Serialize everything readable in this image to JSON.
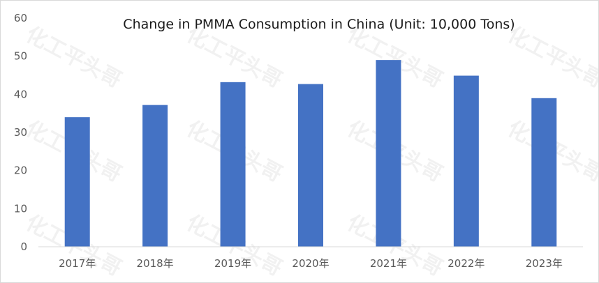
{
  "chart_data": {
    "type": "bar",
    "title": "Change in PMMA Consumption in China (Unit: 10,000 Tons)",
    "categories": [
      "2017年",
      "2018年",
      "2019年",
      "2020年",
      "2021年",
      "2022年",
      "2023年"
    ],
    "series": [
      {
        "values": [
          34,
          37.2,
          43.2,
          42.7,
          49,
          44.9,
          39
        ]
      }
    ],
    "ylim": [
      0,
      60
    ],
    "yticks": [
      0,
      10,
      20,
      30,
      40,
      50,
      60
    ],
    "grid": false,
    "legend": "none",
    "colors": {
      "bar": "#4472c4",
      "axis": "#d9d9d9",
      "text": "#595959"
    }
  },
  "watermark": {
    "text": "化工平头哥"
  }
}
